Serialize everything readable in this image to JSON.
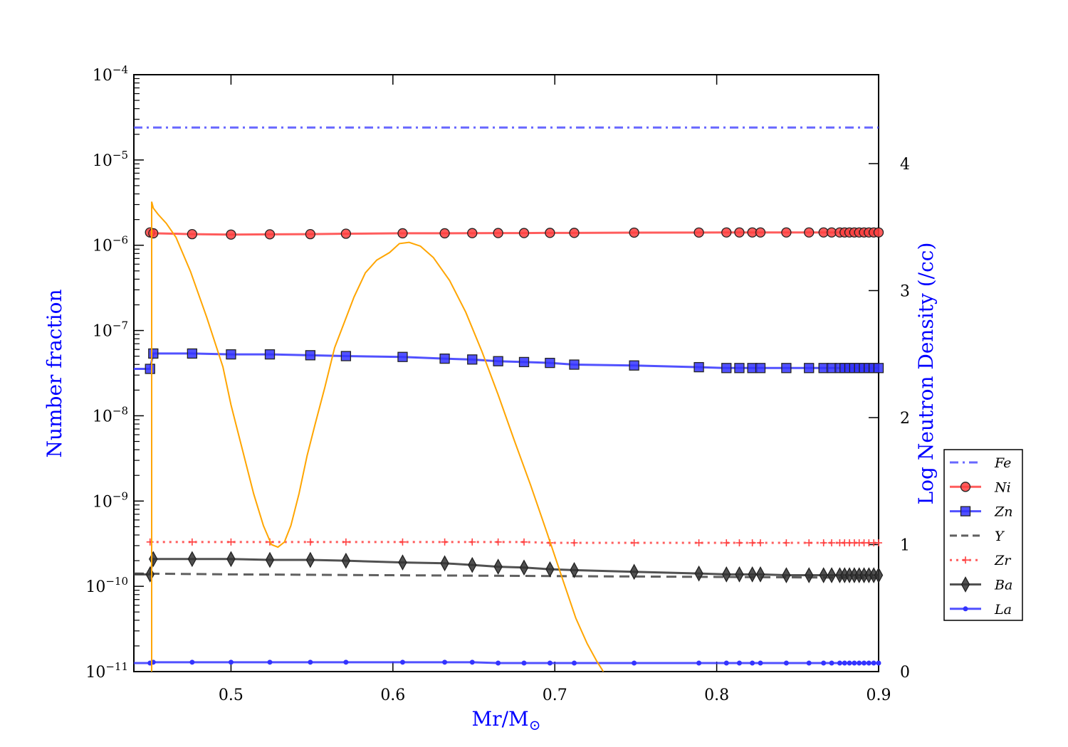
{
  "chart_data": {
    "type": "line",
    "xlabel": "Mr/M",
    "xlabel_sub": "⊙",
    "ylabel_left": "Number fraction",
    "ylabel_right": "Log Neutron Density (/cc)",
    "label_color": "#0000ff",
    "xlim": [
      0.44,
      0.9
    ],
    "ylim_left_log10": [
      -11,
      -4
    ],
    "ylim_right": [
      0,
      4.7
    ],
    "x_ticks": [
      0.5,
      0.6,
      0.7,
      0.8,
      0.9
    ],
    "x_tick_labels": [
      "0.5",
      "0.6",
      "0.7",
      "0.8",
      "0.9"
    ],
    "y_left_ticks": [
      -4,
      -5,
      -6,
      -7,
      -8,
      -9,
      -10,
      -11
    ],
    "y_left_tick_base": "10",
    "y_left_tick_exps": [
      "−4",
      "−5",
      "−6",
      "−7",
      "−8",
      "−9",
      "−10",
      "−11"
    ],
    "y_right_ticks": [
      0,
      1,
      2,
      3,
      4
    ],
    "y_right_tick_labels": [
      "0",
      "1",
      "2",
      "3",
      "4"
    ],
    "legend_position": "lower-right-outside",
    "series": [
      {
        "name": "Fe",
        "color": "#4d4dff",
        "style": "dashdot",
        "marker": "none",
        "axis": "left",
        "x": [
          0.44,
          0.9
        ],
        "log10y": [
          -4.62,
          -4.62
        ]
      },
      {
        "name": "Ni",
        "color": "#ff4040",
        "style": "solid",
        "marker": "circle",
        "axis": "left",
        "x": [
          0.45,
          0.452,
          0.476,
          0.5,
          0.524,
          0.549,
          0.571,
          0.606,
          0.632,
          0.649,
          0.665,
          0.681,
          0.697,
          0.712,
          0.749,
          0.789,
          0.806,
          0.814,
          0.822,
          0.827,
          0.843,
          0.857,
          0.866,
          0.871,
          0.876,
          0.879,
          0.882,
          0.885,
          0.888,
          0.891,
          0.894,
          0.897,
          0.9
        ],
        "log10y": [
          -5.85,
          -5.86,
          -5.87,
          -5.875,
          -5.872,
          -5.87,
          -5.865,
          -5.86,
          -5.86,
          -5.858,
          -5.857,
          -5.857,
          -5.855,
          -5.855,
          -5.852,
          -5.851,
          -5.85,
          -5.85,
          -5.85,
          -5.85,
          -5.85,
          -5.85,
          -5.85,
          -5.85,
          -5.85,
          -5.85,
          -5.85,
          -5.85,
          -5.85,
          -5.85,
          -5.85,
          -5.85,
          -5.85
        ]
      },
      {
        "name": "Zn",
        "color": "#3333ff",
        "style": "solid",
        "marker": "square",
        "axis": "left",
        "x": [
          0.44,
          0.45,
          0.452,
          0.476,
          0.5,
          0.524,
          0.549,
          0.571,
          0.606,
          0.632,
          0.649,
          0.665,
          0.681,
          0.697,
          0.712,
          0.749,
          0.789,
          0.806,
          0.814,
          0.822,
          0.827,
          0.843,
          0.857,
          0.866,
          0.871,
          0.876,
          0.879,
          0.882,
          0.885,
          0.888,
          0.891,
          0.894,
          0.897,
          0.9
        ],
        "log10y": [
          -7.45,
          -7.45,
          -7.27,
          -7.27,
          -7.28,
          -7.28,
          -7.29,
          -7.3,
          -7.31,
          -7.33,
          -7.34,
          -7.36,
          -7.37,
          -7.38,
          -7.4,
          -7.41,
          -7.43,
          -7.44,
          -7.44,
          -7.44,
          -7.44,
          -7.44,
          -7.44,
          -7.44,
          -7.44,
          -7.44,
          -7.44,
          -7.44,
          -7.44,
          -7.44,
          -7.44,
          -7.44,
          -7.44,
          -7.44
        ]
      },
      {
        "name": "Y",
        "color": "#444444",
        "style": "dashed",
        "marker": "none",
        "axis": "left",
        "x": [
          0.44,
          0.5,
          0.6,
          0.7,
          0.8,
          0.9
        ],
        "log10y": [
          -9.85,
          -9.86,
          -9.87,
          -9.88,
          -9.89,
          -9.9
        ]
      },
      {
        "name": "Zr",
        "color": "#ff4040",
        "style": "dotted",
        "marker": "plus",
        "axis": "left",
        "x": [
          0.45,
          0.476,
          0.5,
          0.524,
          0.549,
          0.571,
          0.606,
          0.632,
          0.649,
          0.665,
          0.681,
          0.697,
          0.712,
          0.749,
          0.789,
          0.806,
          0.814,
          0.822,
          0.827,
          0.843,
          0.857,
          0.866,
          0.871,
          0.876,
          0.879,
          0.882,
          0.885,
          0.888,
          0.891,
          0.894,
          0.897,
          0.9
        ],
        "log10y": [
          -9.48,
          -9.48,
          -9.48,
          -9.48,
          -9.48,
          -9.48,
          -9.48,
          -9.48,
          -9.48,
          -9.48,
          -9.48,
          -9.49,
          -9.49,
          -9.49,
          -9.49,
          -9.49,
          -9.49,
          -9.49,
          -9.49,
          -9.49,
          -9.49,
          -9.49,
          -9.49,
          -9.49,
          -9.49,
          -9.49,
          -9.49,
          -9.49,
          -9.49,
          -9.49,
          -9.49,
          -9.49
        ]
      },
      {
        "name": "Ba",
        "color": "#333333",
        "style": "solid",
        "marker": "diamond",
        "axis": "left",
        "x": [
          0.44,
          0.45,
          0.452,
          0.476,
          0.5,
          0.524,
          0.549,
          0.571,
          0.606,
          0.632,
          0.649,
          0.665,
          0.681,
          0.697,
          0.712,
          0.749,
          0.789,
          0.806,
          0.814,
          0.822,
          0.827,
          0.843,
          0.857,
          0.866,
          0.871,
          0.876,
          0.879,
          0.882,
          0.885,
          0.888,
          0.891,
          0.894,
          0.897,
          0.9
        ],
        "log10y": [
          -9.86,
          -9.86,
          -9.68,
          -9.68,
          -9.68,
          -9.69,
          -9.69,
          -9.7,
          -9.72,
          -9.73,
          -9.75,
          -9.77,
          -9.78,
          -9.8,
          -9.81,
          -9.83,
          -9.85,
          -9.86,
          -9.86,
          -9.86,
          -9.86,
          -9.87,
          -9.87,
          -9.87,
          -9.87,
          -9.87,
          -9.87,
          -9.87,
          -9.87,
          -9.87,
          -9.87,
          -9.87,
          -9.87,
          -9.87
        ]
      },
      {
        "name": "La",
        "color": "#3333ff",
        "style": "solid",
        "marker": "dot",
        "axis": "left",
        "x": [
          0.44,
          0.45,
          0.452,
          0.476,
          0.5,
          0.524,
          0.549,
          0.571,
          0.606,
          0.632,
          0.649,
          0.665,
          0.681,
          0.697,
          0.712,
          0.749,
          0.789,
          0.806,
          0.814,
          0.822,
          0.827,
          0.843,
          0.857,
          0.866,
          0.871,
          0.876,
          0.879,
          0.882,
          0.885,
          0.888,
          0.891,
          0.894,
          0.897,
          0.9
        ],
        "log10y": [
          -10.9,
          -10.9,
          -10.89,
          -10.89,
          -10.89,
          -10.89,
          -10.89,
          -10.89,
          -10.89,
          -10.89,
          -10.89,
          -10.9,
          -10.9,
          -10.9,
          -10.9,
          -10.9,
          -10.9,
          -10.9,
          -10.9,
          -10.9,
          -10.9,
          -10.9,
          -10.9,
          -10.9,
          -10.9,
          -10.9,
          -10.9,
          -10.9,
          -10.9,
          -10.9,
          -10.9,
          -10.9,
          -10.9,
          -10.9
        ]
      }
    ],
    "neutron_density": {
      "color": "#ffa500",
      "axis": "right",
      "legend": false,
      "x": [
        0.451,
        0.451,
        0.452,
        0.455,
        0.46,
        0.466,
        0.475,
        0.485,
        0.495,
        0.5,
        0.507,
        0.514,
        0.52,
        0.525,
        0.529,
        0.533,
        0.537,
        0.542,
        0.547,
        0.552,
        0.558,
        0.564,
        0.57,
        0.576,
        0.583,
        0.59,
        0.598,
        0.604,
        0.61,
        0.617,
        0.625,
        0.635,
        0.645,
        0.655,
        0.665,
        0.675,
        0.685,
        0.695,
        0.705,
        0.713,
        0.72,
        0.726,
        0.73
      ],
      "y": [
        0,
        3.7,
        3.65,
        3.6,
        3.53,
        3.42,
        3.15,
        2.79,
        2.4,
        2.1,
        1.75,
        1.4,
        1.15,
        1.0,
        0.98,
        1.02,
        1.15,
        1.4,
        1.7,
        1.95,
        2.24,
        2.55,
        2.75,
        2.95,
        3.14,
        3.24,
        3.3,
        3.37,
        3.38,
        3.35,
        3.26,
        3.08,
        2.83,
        2.52,
        2.18,
        1.82,
        1.47,
        1.1,
        0.72,
        0.42,
        0.22,
        0.08,
        0
      ]
    }
  }
}
